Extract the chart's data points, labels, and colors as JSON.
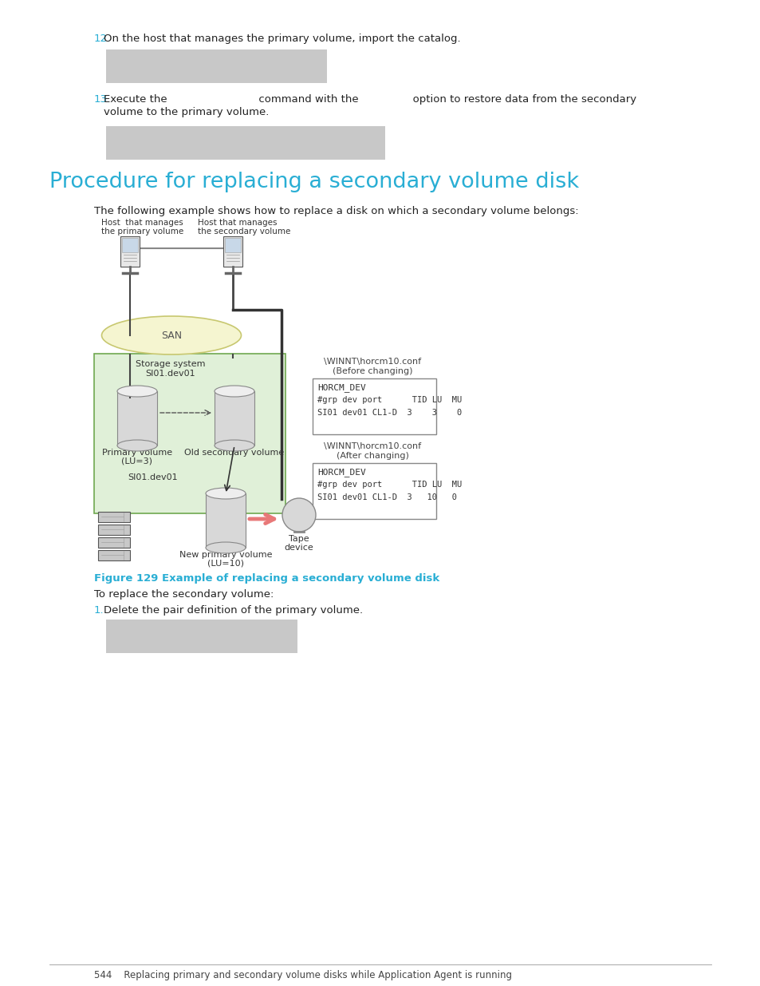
{
  "bg_color": "#ffffff",
  "page_width": 9.54,
  "page_height": 12.35,
  "cyan_color": "#29aed4",
  "black_color": "#222222",
  "gray_box_color": "#c8c8c8",
  "light_green_color": "#e0f0d8",
  "san_ellipse_color": "#f5f5d0",
  "step12_num": "12.",
  "step12_body": "  On the host that manages the primary volume, import the catalog.",
  "step13_num": "13.",
  "step13_body1": "  Execute the                           command with the                option to restore data from the secondary",
  "step13_body2": "     volume to the primary volume.",
  "section_title": "Procedure for replacing a secondary volume disk",
  "section_desc": "The following example shows how to replace a disk on which a secondary volume belongs:",
  "figure_caption": "Figure 129 Example of replacing a secondary volume disk",
  "figure_desc": "To replace the secondary volume:",
  "step1_num": "1.",
  "step1_body": "   Delete the pair definition of the primary volume.",
  "footer_text": "544    Replacing primary and secondary volume disks while Application Agent is running",
  "host1_label1": "Host  that manages",
  "host1_label2": "the primary volume",
  "host2_label1": "Host that manages",
  "host2_label2": "the secondary volume",
  "san_label": "SAN",
  "storage_label1": "Storage system",
  "storage_label2": "SI01.dev01",
  "pv_label1": "Primary volume",
  "pv_label2": "(LU=3)",
  "sv_label": "Old secondary volume",
  "new_pv_label1": "New primary volume",
  "new_pv_label2": "(LU=10)",
  "si01_dev01_label": "SI01.dev01",
  "tape_label1": "Tape",
  "tape_label2": "device",
  "before_conf_title1": "\\WINNT\\horcm10.conf",
  "before_conf_title2": "(Before changing)",
  "after_conf_title1": "\\WINNT\\horcm10.conf",
  "after_conf_title2": "(After changing)",
  "horcm_line1": "HORCM_DEV",
  "horcm_line2": "#grp dev port      TID LU  MU",
  "before_horcm_line3": "SI01 dev01 CL1-D  3    3    0",
  "after_horcm_line3": "SI01 dev01 CL1-D  3   10   0"
}
